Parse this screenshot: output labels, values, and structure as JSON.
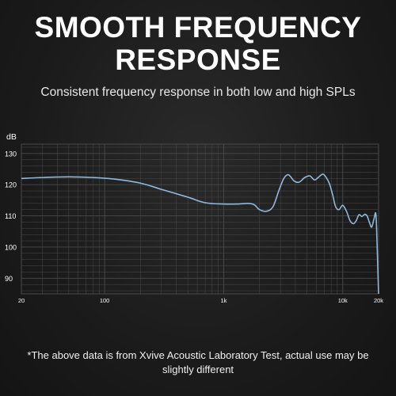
{
  "headline": {
    "line1": "SMOOTH FREQUENCY",
    "line2": "RESPONSE"
  },
  "subtitle": "Consistent frequency response in both low and high SPLs",
  "footnote": "*The above data is from Xvive Acoustic Laboratory Test, actual use may be slightly different",
  "colors": {
    "curve": "#8fb8dc",
    "grid": "#4a4a4a",
    "text": "#ffffff"
  },
  "chart_data": {
    "type": "line",
    "title": "",
    "xlabel": "",
    "ylabel": "dB",
    "xscale": "log",
    "xlim": [
      20,
      20000
    ],
    "ylim": [
      85,
      133
    ],
    "grid": true,
    "y_ticks": [
      90,
      100,
      110,
      120,
      130
    ],
    "x_ticks": [
      {
        "value": 20,
        "label": "20"
      },
      {
        "value": 100,
        "label": "100"
      },
      {
        "value": 1000,
        "label": "1k"
      },
      {
        "value": 10000,
        "label": "10k"
      },
      {
        "value": 20000,
        "label": "20k"
      }
    ],
    "series": [
      {
        "name": "",
        "x": [
          20,
          30,
          50,
          80,
          120,
          200,
          300,
          500,
          700,
          1000,
          1300,
          1600,
          1800,
          2000,
          2300,
          2600,
          2900,
          3200,
          3500,
          3900,
          4300,
          4800,
          5300,
          5800,
          6300,
          6800,
          7200,
          7700,
          8200,
          8700,
          9300,
          10000,
          10800,
          11500,
          12300,
          13000,
          13700,
          14500,
          15300,
          16000,
          16800,
          17500,
          18300,
          19000,
          19500,
          20000
        ],
        "y": [
          122,
          122.3,
          122.5,
          122.3,
          121.8,
          120.5,
          118.5,
          116,
          114.2,
          113.8,
          113.8,
          114,
          113.6,
          112,
          111.5,
          113,
          118,
          122,
          123.2,
          121.2,
          120.8,
          122.3,
          122.8,
          121.5,
          122.5,
          123.4,
          122.5,
          120.5,
          117,
          113,
          112,
          113.4,
          111.3,
          108.5,
          107.5,
          108.5,
          110.4,
          109.8,
          110.5,
          110,
          107.8,
          106.4,
          109,
          110.4,
          99,
          85
        ]
      }
    ]
  }
}
